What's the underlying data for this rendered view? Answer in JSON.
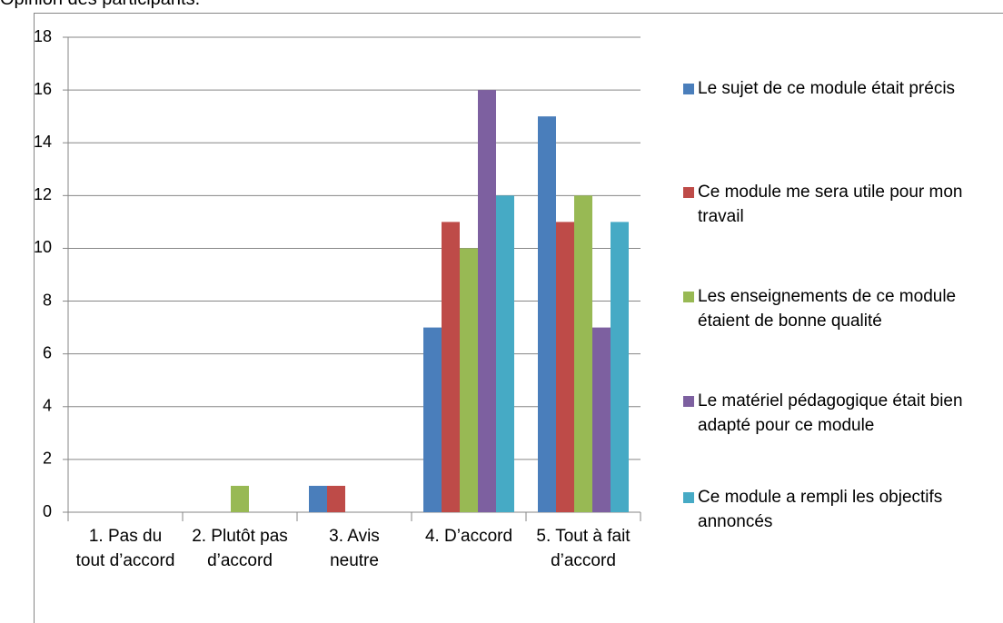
{
  "chart_data": {
    "type": "bar",
    "title": "Opinion des participants.",
    "categories": [
      "1. Pas du tout d’accord",
      "2. Plutôt pas d’accord",
      "3. Avis neutre",
      "4. D’accord",
      "5. Tout à fait d’accord"
    ],
    "series": [
      {
        "name": "Le sujet de ce module était précis",
        "color": "#4a7ebb",
        "values": [
          0,
          0,
          1,
          7,
          15
        ]
      },
      {
        "name": "Ce module me sera utile pour mon travail",
        "color": "#be4b48",
        "values": [
          0,
          0,
          1,
          11,
          11
        ]
      },
      {
        "name": "Les enseignements de ce module étaient de bonne qualité",
        "color": "#98b954",
        "values": [
          0,
          1,
          0,
          10,
          12
        ]
      },
      {
        "name": "Le matériel pédagogique était bien adapté pour ce module",
        "color": "#7d60a0",
        "values": [
          0,
          0,
          0,
          16,
          7
        ]
      },
      {
        "name": "Ce module a rempli les objectifs annoncés",
        "color": "#46aac5",
        "values": [
          0,
          0,
          0,
          12,
          11
        ]
      }
    ],
    "ylim": [
      0,
      18
    ],
    "yticks": [
      0,
      2,
      4,
      6,
      8,
      10,
      12,
      14,
      16,
      18
    ],
    "grid": true,
    "legend": "right"
  }
}
